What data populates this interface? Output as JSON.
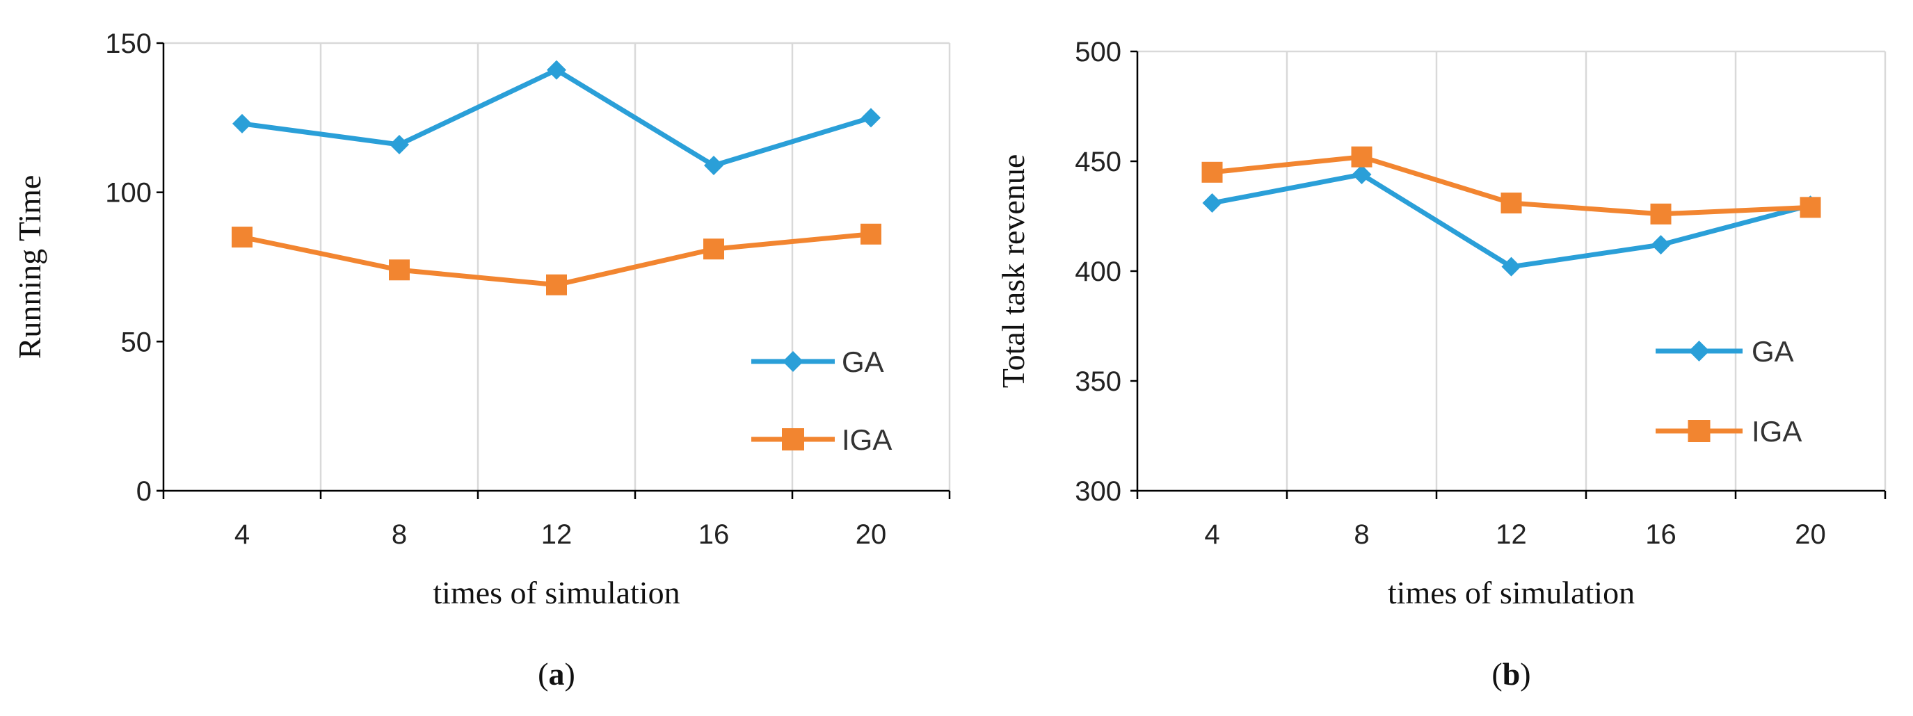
{
  "chart_data": [
    {
      "type": "line",
      "panel_label": "a",
      "x": [
        4,
        8,
        12,
        16,
        20
      ],
      "xticks": [
        "4",
        "8",
        "12",
        "16",
        "20"
      ],
      "xlabel": "times of simulation",
      "ylabel": "Running Time",
      "ylim": [
        0,
        150
      ],
      "yticks": [
        "0",
        "50",
        "100",
        "150"
      ],
      "grid": "vertical",
      "legend_position": "bottom-right",
      "series": [
        {
          "name": "GA",
          "color": "#2a9fd8",
          "marker": "diamond",
          "values": [
            123,
            116,
            141,
            109,
            125
          ]
        },
        {
          "name": "IGA",
          "color": "#f28530",
          "marker": "square",
          "values": [
            85,
            74,
            69,
            81,
            86
          ]
        }
      ]
    },
    {
      "type": "line",
      "panel_label": "b",
      "x": [
        4,
        8,
        12,
        16,
        20
      ],
      "xticks": [
        "4",
        "8",
        "12",
        "16",
        "20"
      ],
      "xlabel": "times of simulation",
      "ylabel": "Total task revenue",
      "ylim": [
        300,
        500
      ],
      "yticks": [
        "300",
        "350",
        "400",
        "450",
        "500"
      ],
      "grid": "vertical",
      "legend_position": "bottom-right",
      "series": [
        {
          "name": "GA",
          "color": "#2a9fd8",
          "marker": "diamond",
          "values": [
            431,
            444,
            402,
            412,
            430
          ]
        },
        {
          "name": "IGA",
          "color": "#f28530",
          "marker": "square",
          "values": [
            445,
            452,
            431,
            426,
            429
          ]
        }
      ]
    }
  ]
}
